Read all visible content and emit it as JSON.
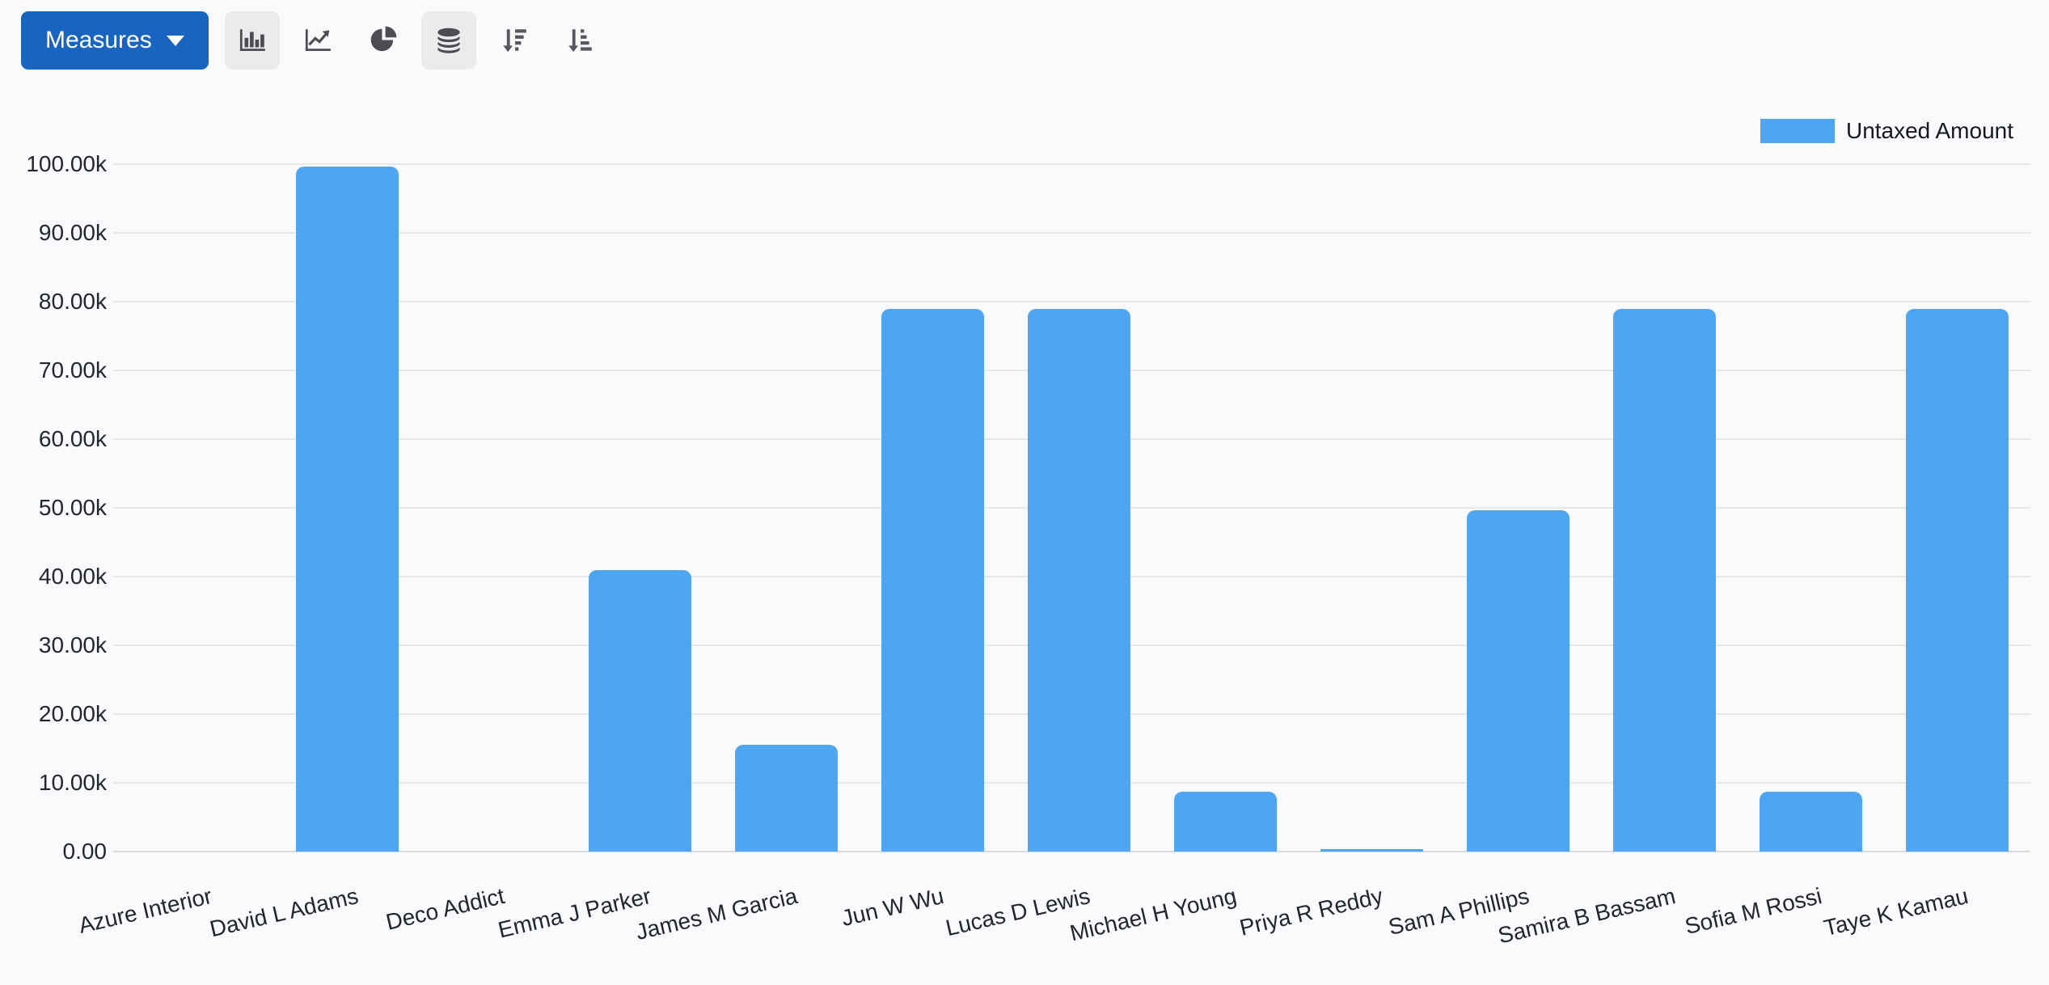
{
  "toolbar": {
    "measures_label": "Measures",
    "chart_type_buttons": [
      {
        "name": "bar-chart",
        "icon": "chart-bar-icon",
        "active": true
      },
      {
        "name": "line-chart",
        "icon": "chart-line-icon",
        "active": false
      },
      {
        "name": "pie-chart",
        "icon": "chart-pie-icon",
        "active": false
      },
      {
        "name": "stacked-toggle",
        "icon": "database-icon",
        "active": true
      },
      {
        "name": "sort-descending",
        "icon": "sort-amount-desc-icon",
        "active": false
      },
      {
        "name": "sort-ascending",
        "icon": "sort-amount-asc-icon",
        "active": false
      }
    ]
  },
  "legend": {
    "label": "Untaxed Amount",
    "swatch_color": "#4EA5F1",
    "position": "top-right"
  },
  "chart_data": {
    "type": "bar",
    "title": "",
    "xlabel": "",
    "ylabel": "",
    "grid": true,
    "ylim": [
      0,
      100000
    ],
    "categories": [
      "Azure Interior",
      "David L Adams",
      "Deco Addict",
      "Emma J Parker",
      "James M Garcia",
      "Jun W Wu",
      "Lucas D Lewis",
      "Michael H Young",
      "Priya R Reddy",
      "Sam A Phillips",
      "Samira B Bassam",
      "Sofia M Rossi",
      "Taye K Kamau"
    ],
    "series": [
      {
        "name": "Untaxed Amount",
        "color": "#4EA5F1",
        "values": [
          0,
          99600,
          0,
          40900,
          15500,
          78900,
          78900,
          8700,
          350,
          49600,
          78900,
          8700,
          78900
        ]
      }
    ],
    "y_ticks": [
      {
        "value": 100000,
        "label": "100.00k"
      },
      {
        "value": 90000,
        "label": "90.00k"
      },
      {
        "value": 80000,
        "label": "80.00k"
      },
      {
        "value": 70000,
        "label": "70.00k"
      },
      {
        "value": 60000,
        "label": "60.00k"
      },
      {
        "value": 50000,
        "label": "50.00k"
      },
      {
        "value": 40000,
        "label": "40.00k"
      },
      {
        "value": 30000,
        "label": "30.00k"
      },
      {
        "value": 20000,
        "label": "20.00k"
      },
      {
        "value": 10000,
        "label": "10.00k"
      },
      {
        "value": 0,
        "label": "0.00"
      }
    ]
  },
  "colors": {
    "bar": "#4EA5F1",
    "measures_button": "#1a64c1",
    "active_icon_background": "#ebebee",
    "gridline": "#e7e7ea",
    "axis_text": "#23262e",
    "background": "#f9fafb"
  }
}
